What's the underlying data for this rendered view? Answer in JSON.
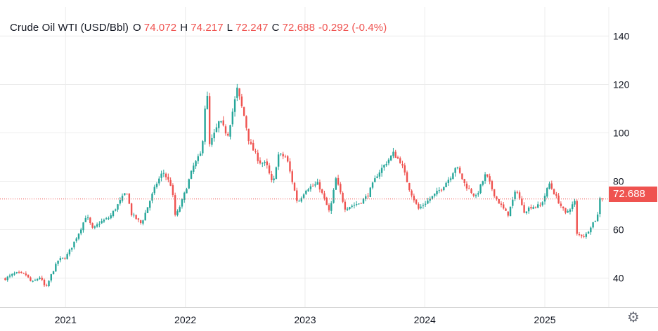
{
  "legend": {
    "symbol": "Crude Oil WTI (USD/Bbl)",
    "open_key": "O",
    "open": "74.072",
    "high_key": "H",
    "high": "74.217",
    "low_key": "L",
    "low": "72.247",
    "close_key": "C",
    "close": "72.688",
    "change": "-0.292 (-0.4%)"
  },
  "last_price_label": "72.688",
  "settings_icon": "gear-icon",
  "colors": {
    "up": "#26a69a",
    "down": "#ef5350",
    "grid": "#ececec",
    "text": "#131722"
  },
  "chart_data": {
    "type": "candlestick",
    "title": "Crude Oil WTI (USD/Bbl)",
    "x_tick_labels": [
      "2021",
      "2022",
      "2023",
      "2024",
      "2025"
    ],
    "y_tick_labels": [
      40,
      60,
      80,
      100,
      120,
      140
    ],
    "ylim": [
      28,
      152
    ],
    "xlim": [
      "2020-06-15",
      "2025-07-15"
    ],
    "grid": true,
    "last_price": 72.688,
    "close_anchors": [
      [
        "2020-07-01",
        39.8
      ],
      [
        "2020-08-01",
        42.0
      ],
      [
        "2020-09-01",
        41.5
      ],
      [
        "2020-09-20",
        38.0
      ],
      [
        "2020-10-15",
        40.5
      ],
      [
        "2020-11-02",
        35.5
      ],
      [
        "2020-11-20",
        42.0
      ],
      [
        "2020-12-10",
        47.5
      ],
      [
        "2021-01-01",
        48.5
      ],
      [
        "2021-01-20",
        53.0
      ],
      [
        "2021-02-15",
        60.0
      ],
      [
        "2021-03-05",
        66.0
      ],
      [
        "2021-03-25",
        60.0
      ],
      [
        "2021-04-15",
        63.0
      ],
      [
        "2021-05-15",
        65.0
      ],
      [
        "2021-06-10",
        70.5
      ],
      [
        "2021-07-06",
        76.0
      ],
      [
        "2021-07-20",
        66.5
      ],
      [
        "2021-08-20",
        62.5
      ],
      [
        "2021-09-15",
        72.0
      ],
      [
        "2021-10-05",
        79.0
      ],
      [
        "2021-10-25",
        84.0
      ],
      [
        "2021-11-20",
        78.0
      ],
      [
        "2021-12-02",
        65.0
      ],
      [
        "2021-12-25",
        73.0
      ],
      [
        "2022-01-25",
        86.0
      ],
      [
        "2022-02-20",
        92.0
      ],
      [
        "2022-03-07",
        120.0
      ],
      [
        "2022-03-16",
        95.0
      ],
      [
        "2022-04-01",
        100.0
      ],
      [
        "2022-04-15",
        105.0
      ],
      [
        "2022-05-10",
        99.0
      ],
      [
        "2022-06-08",
        118.0
      ],
      [
        "2022-07-01",
        106.0
      ],
      [
        "2022-07-15",
        96.0
      ],
      [
        "2022-08-15",
        88.0
      ],
      [
        "2022-09-05",
        87.0
      ],
      [
        "2022-09-25",
        78.0
      ],
      [
        "2022-10-10",
        91.0
      ],
      [
        "2022-11-05",
        90.0
      ],
      [
        "2022-12-09",
        71.0
      ],
      [
        "2023-01-05",
        77.0
      ],
      [
        "2023-02-10",
        79.0
      ],
      [
        "2023-03-17",
        67.0
      ],
      [
        "2023-04-05",
        81.0
      ],
      [
        "2023-05-03",
        69.0
      ],
      [
        "2023-06-15",
        71.0
      ],
      [
        "2023-07-10",
        74.0
      ],
      [
        "2023-08-10",
        83.0
      ],
      [
        "2023-09-27",
        91.5
      ],
      [
        "2023-10-20",
        88.0
      ],
      [
        "2023-11-15",
        77.0
      ],
      [
        "2023-12-12",
        68.5
      ],
      [
        "2024-01-15",
        72.5
      ],
      [
        "2024-02-20",
        77.0
      ],
      [
        "2024-03-20",
        82.0
      ],
      [
        "2024-04-05",
        86.5
      ],
      [
        "2024-05-03",
        78.5
      ],
      [
        "2024-06-05",
        73.5
      ],
      [
        "2024-07-05",
        83.0
      ],
      [
        "2024-08-05",
        73.0
      ],
      [
        "2024-09-10",
        66.0
      ],
      [
        "2024-10-07",
        77.0
      ],
      [
        "2024-10-28",
        67.5
      ],
      [
        "2024-11-20",
        69.5
      ],
      [
        "2024-12-20",
        70.0
      ],
      [
        "2025-01-15",
        79.0
      ],
      [
        "2025-02-10",
        72.0
      ],
      [
        "2025-03-05",
        66.5
      ],
      [
        "2025-04-02",
        71.5
      ],
      [
        "2025-04-09",
        58.0
      ],
      [
        "2025-05-05",
        57.5
      ],
      [
        "2025-05-25",
        62.5
      ],
      [
        "2025-06-10",
        65.0
      ],
      [
        "2025-06-18",
        73.5
      ],
      [
        "2025-06-25",
        72.7
      ]
    ]
  }
}
